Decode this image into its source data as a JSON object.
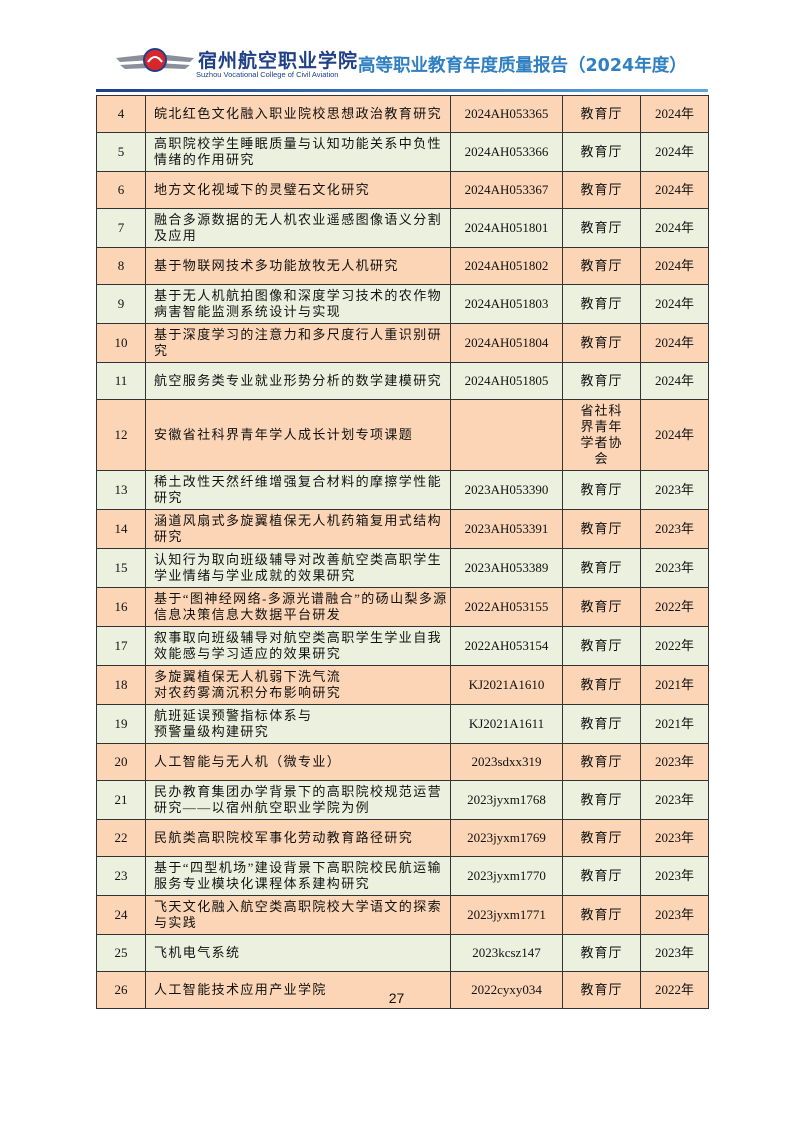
{
  "header": {
    "school_name": "宿州航空职业学院",
    "school_name_en": "Suzhou Vocational College of Civil Aviation",
    "report_title": "高等职业教育年度质量报告（2024年度）"
  },
  "table": {
    "rows": [
      [
        4,
        [
          "皖北红色文化融入职业院校思想政治教育研究"
        ],
        "2024AH053365",
        "教育厅",
        "2024年"
      ],
      [
        5,
        [
          "高职院校学生睡眠质量与认知功能关系中负性",
          "情绪的作用研究"
        ],
        "2024AH053366",
        "教育厅",
        "2024年"
      ],
      [
        6,
        [
          "地方文化视域下的灵璧石文化研究"
        ],
        "2024AH053367",
        "教育厅",
        "2024年"
      ],
      [
        7,
        [
          "融合多源数据的无人机农业遥感图像语义分割",
          "及应用"
        ],
        "2024AH051801",
        "教育厅",
        "2024年"
      ],
      [
        8,
        [
          "基于物联网技术多功能放牧无人机研究"
        ],
        "2024AH051802",
        "教育厅",
        "2024年"
      ],
      [
        9,
        [
          "基于无人机航拍图像和深度学习技术的农作物",
          "病害智能监测系统设计与实现"
        ],
        "2024AH051803",
        "教育厅",
        "2024年"
      ],
      [
        10,
        [
          "基于深度学习的注意力和多尺度行人重识别研",
          "究"
        ],
        "2024AH051804",
        "教育厅",
        "2024年"
      ],
      [
        11,
        [
          "航空服务类专业就业形势分析的数学建模研究"
        ],
        "2024AH051805",
        "教育厅",
        "2024年"
      ],
      [
        12,
        [
          "安徽省社科界青年学人成长计划专项课题"
        ],
        null,
        "省社科界青年学者协会",
        "2024年"
      ],
      [
        13,
        [
          "稀土改性天然纤维增强复合材料的摩擦学性能",
          "研究"
        ],
        "2023AH053390",
        "教育厅",
        "2023年"
      ],
      [
        14,
        [
          "涵道风扇式多旋翼植保无人机药箱复用式结构",
          "研究"
        ],
        "2023AH053391",
        "教育厅",
        "2023年"
      ],
      [
        15,
        [
          "认知行为取向班级辅导对改善航空类高职学生",
          "学业情绪与学业成就的效果研究"
        ],
        "2023AH053389",
        "教育厅",
        "2023年"
      ],
      [
        16,
        [
          "基于“图神经网络-多源光谱融合”的砀山梨多源",
          "信息决策信息大数据平台研发"
        ],
        "2022AH053155",
        "教育厅",
        "2022年"
      ],
      [
        17,
        [
          "叙事取向班级辅导对航空类高职学生学业自我",
          "效能感与学习适应的效果研究"
        ],
        "2022AH053154",
        "教育厅",
        "2022年"
      ],
      [
        18,
        [
          "多旋翼植保无人机弱下洗气流",
          "对农药雾滴沉积分布影响研究"
        ],
        "KJ2021A1610",
        "教育厅",
        "2021年"
      ],
      [
        19,
        [
          "航班延误预警指标体系与",
          "预警量级构建研究"
        ],
        "KJ2021A1611",
        "教育厅",
        "2021年"
      ],
      [
        20,
        [
          "人工智能与无人机（微专业）"
        ],
        "2023sdxx319",
        "教育厅",
        "2023年"
      ],
      [
        21,
        [
          "民办教育集团办学背景下的高职院校规范运营",
          "研究——以宿州航空职业学院为例"
        ],
        "2023jyxm1768",
        "教育厅",
        "2023年"
      ],
      [
        22,
        [
          "民航类高职院校军事化劳动教育路径研究"
        ],
        "2023jyxm1769",
        "教育厅",
        "2023年"
      ],
      [
        23,
        [
          "基于“四型机场”建设背景下高职院校民航运输",
          "服务专业模块化课程体系建构研究"
        ],
        "2023jyxm1770",
        "教育厅",
        "2023年"
      ],
      [
        24,
        [
          "飞天文化融入航空类高职院校大学语文的探索",
          "与实践"
        ],
        "2023jyxm1771",
        "教育厅",
        "2023年"
      ],
      [
        25,
        [
          "飞机电气系统"
        ],
        "2023kcsz147",
        "教育厅",
        "2023年"
      ],
      [
        26,
        [
          "人工智能技术应用产业学院"
        ],
        "2022cyxy034",
        "教育厅",
        "2022年"
      ]
    ]
  },
  "footer": {
    "page_number": 27
  }
}
